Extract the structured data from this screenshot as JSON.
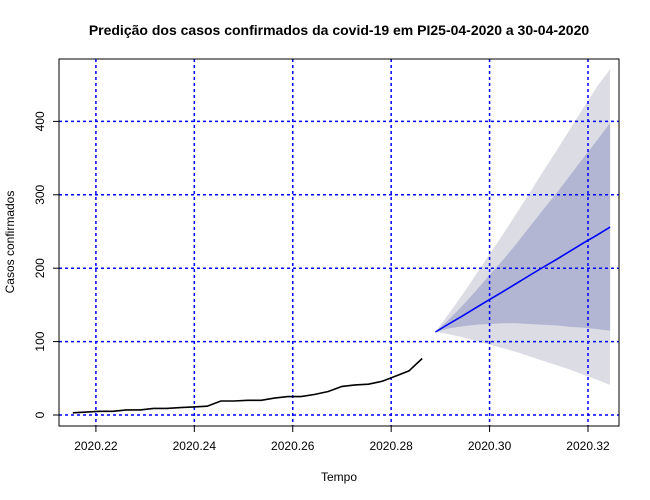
{
  "chart_data": {
    "type": "line",
    "title": "Predição dos casos confirmados da covid-19 em PI25-04-2020 a 30-04-2020",
    "xlabel": "Tempo",
    "ylabel": "Casos confirmados",
    "xlim": [
      2020.2125,
      2020.3263
    ],
    "ylim": [
      -15,
      485
    ],
    "x_ticks": [
      2020.22,
      2020.24,
      2020.26,
      2020.28,
      2020.3,
      2020.32
    ],
    "x_tick_labels": [
      "2020.22",
      "2020.24",
      "2020.26",
      "2020.28",
      "2020.30",
      "2020.32"
    ],
    "y_ticks": [
      0,
      100,
      200,
      300,
      400
    ],
    "y_tick_labels": [
      "0",
      "100",
      "200",
      "300",
      "400"
    ],
    "grid": true,
    "grid_color": "#0000ff",
    "observed": {
      "color": "#000000",
      "x": [
        2020.2153,
        2020.218,
        2020.2208,
        2020.2235,
        2020.2262,
        2020.229,
        2020.2317,
        2020.2344,
        2020.2372,
        2020.2399,
        2020.2426,
        2020.2454,
        2020.2481,
        2020.2508,
        2020.2536,
        2020.2563,
        2020.259,
        2020.2617,
        2020.2645,
        2020.2672,
        2020.27,
        2020.2727,
        2020.2754,
        2020.2782,
        2020.2809,
        2020.2836,
        2020.2863
      ],
      "y": [
        3,
        4,
        5,
        5,
        7,
        7,
        9,
        9,
        10,
        11,
        12,
        19,
        19,
        20,
        20,
        23,
        25,
        25,
        28,
        32,
        39,
        41,
        42,
        46,
        53,
        60,
        77
      ]
    },
    "forecast": {
      "color": "#0000ff",
      "x": [
        2020.289,
        2020.2917,
        2020.2945,
        2020.2972,
        2020.2999,
        2020.3027,
        2020.3054,
        2020.3081,
        2020.3108,
        2020.3136,
        2020.3163,
        2020.319,
        2020.3218,
        2020.3245
      ],
      "mean": [
        113,
        124,
        135,
        146,
        157,
        168,
        179,
        190,
        201,
        212,
        223,
        234,
        245,
        256
      ],
      "lo80": [
        113,
        118,
        121,
        123,
        124,
        125,
        125,
        124,
        123,
        122,
        120,
        119,
        117,
        115
      ],
      "hi80": [
        113,
        130,
        149,
        169,
        190,
        211,
        233,
        256,
        279,
        302,
        326,
        350,
        374,
        398
      ],
      "lo95": [
        113,
        110,
        106,
        101,
        96,
        91,
        86,
        80,
        74,
        68,
        62,
        55,
        48,
        41
      ],
      "hi95": [
        113,
        138,
        164,
        191,
        218,
        246,
        274,
        302,
        331,
        360,
        389,
        418,
        447,
        471
      ],
      "band80_color": "#b2b6d2",
      "band95_color": "#dcdce4"
    }
  }
}
